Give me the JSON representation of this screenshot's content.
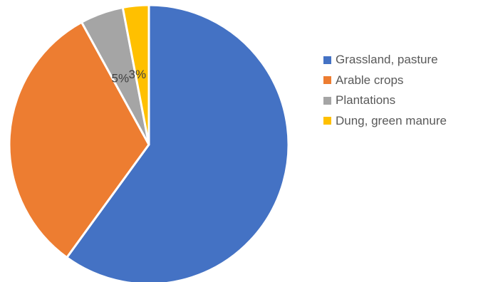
{
  "chart_data": {
    "type": "pie",
    "title": "",
    "legend_position": "right",
    "slices": [
      {
        "label": "Grassland, pasture",
        "value": 60,
        "color": "#4472C4",
        "data_label": ""
      },
      {
        "label": "Arable crops",
        "value": 32,
        "color": "#ED7D31",
        "data_label": ""
      },
      {
        "label": "Plantations",
        "value": 5,
        "color": "#A5A5A5",
        "data_label": "5%"
      },
      {
        "label": "Dung, green manure",
        "value": 3,
        "color": "#FFC000",
        "data_label": "3%"
      }
    ]
  }
}
